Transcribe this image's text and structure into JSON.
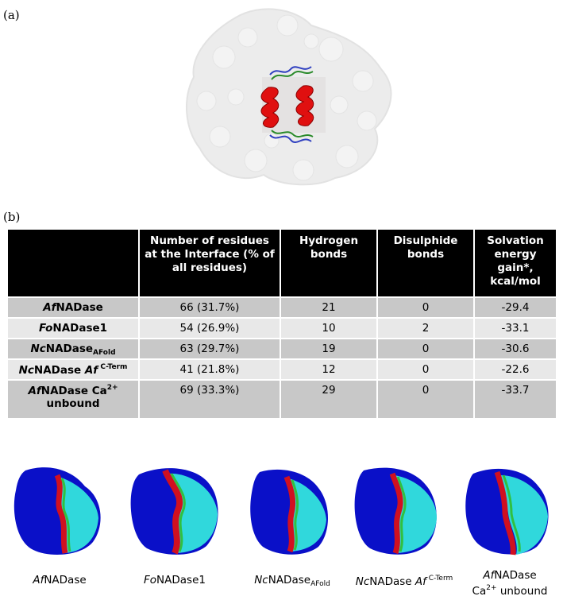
{
  "panels": {
    "a": "(a)",
    "b": "(b)"
  },
  "table": {
    "headers": [
      "",
      "Number of residues at the Interface (% of all residues)",
      "Hydrogen bonds",
      "Disulphide bonds",
      "Solvation energy gain*, kcal/mol"
    ],
    "rows": [
      {
        "name_italic": "Af",
        "name_rest": "NADase",
        "name_sub": "",
        "name_sup": "",
        "name_line2": "",
        "residues": "66 (31.7%)",
        "hbonds": "21",
        "disulphide": "0",
        "solvation": "-29.4"
      },
      {
        "name_italic": "Fo",
        "name_rest": "NADase1",
        "name_sub": "",
        "name_sup": "",
        "name_line2": "",
        "residues": "54 (26.9%)",
        "hbonds": "10",
        "disulphide": "2",
        "solvation": "-33.1"
      },
      {
        "name_italic": "Nc",
        "name_rest": "NADase",
        "name_sub": "AFold",
        "name_sup": "",
        "name_line2": "",
        "residues": "63 (29.7%)",
        "hbonds": "19",
        "disulphide": "0",
        "solvation": "-30.6"
      },
      {
        "name_italic": "Nc",
        "name_rest": "NADase ",
        "name_italic2": "Af",
        "name_sub": "",
        "name_sup": " C-Term",
        "name_line2": "",
        "residues": "41 (21.8%)",
        "hbonds": "12",
        "disulphide": "0",
        "solvation": "-22.6"
      },
      {
        "name_italic": "Af",
        "name_rest": "NADase Ca",
        "name_sub": "",
        "name_sup": "2+",
        "name_line2": "unbound",
        "residues": "69 (33.3%)",
        "hbonds": "29",
        "disulphide": "0",
        "solvation": "-33.7"
      }
    ]
  },
  "captions": [
    {
      "italic": "Af",
      "rest": "NADase",
      "sub": "",
      "sup": "",
      "line2": "",
      "line2_sup": "",
      "line2_rest": ""
    },
    {
      "italic": "Fo",
      "rest": "NADase1",
      "sub": "",
      "sup": "",
      "line2": "",
      "line2_sup": "",
      "line2_rest": ""
    },
    {
      "italic": "Nc",
      "rest": "NADase",
      "sub": "AFold",
      "sup": "",
      "line2": "",
      "line2_sup": "",
      "line2_rest": ""
    },
    {
      "italic": "Nc",
      "rest": "NADase ",
      "italic2": "Af",
      "sub": "",
      "sup": " C-Term",
      "line2": "",
      "line2_sup": "",
      "line2_rest": ""
    },
    {
      "italic": "Af",
      "rest": "NADase",
      "sub": "",
      "sup": "",
      "line2": "Ca",
      "line2_sup": "2+",
      "line2_rest": " unbound"
    }
  ],
  "colors": {
    "surface": "#ececec",
    "helix": "#e01010",
    "loop_blue": "#3040c0",
    "loop_green": "#2a8a2a",
    "mol_dark_blue": "#0a10c8",
    "mol_cyan": "#30d8dc",
    "mol_red": "#d01020",
    "mol_green": "#30c040"
  }
}
